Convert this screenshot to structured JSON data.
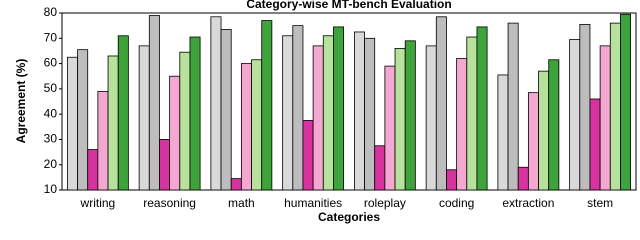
{
  "chart_data": {
    "type": "bar",
    "title": "Category-wise MT-bench Evaluation",
    "x_label": "Categories",
    "y_label": "Agreement (%)",
    "categories": [
      "writing",
      "reasoning",
      "math",
      "humanities",
      "roleplay",
      "coding",
      "extraction",
      "stem"
    ],
    "series": [
      {
        "color": "#d9d9d9",
        "values": [
          62.5,
          67,
          78.5,
          71,
          72.5,
          67,
          55.5,
          69.5
        ]
      },
      {
        "color": "#bdbdbd",
        "values": [
          65.5,
          79,
          73.5,
          75,
          70,
          78.5,
          76,
          75.5
        ]
      },
      {
        "color": "#d6339f",
        "values": [
          26,
          30,
          14.5,
          37.5,
          27.5,
          18,
          19,
          46
        ]
      },
      {
        "color": "#f4a8d1",
        "values": [
          49,
          55,
          60,
          67,
          59,
          62,
          48.5,
          67
        ]
      },
      {
        "color": "#b6e29c",
        "values": [
          63,
          64.5,
          61.5,
          71,
          66,
          70.5,
          57,
          76
        ]
      },
      {
        "color": "#3ea33a",
        "values": [
          71,
          70.5,
          77,
          74.5,
          69,
          74.5,
          61.5,
          79.5
        ]
      }
    ],
    "ylim": [
      10,
      80
    ],
    "yticks": [
      10,
      20,
      30,
      40,
      50,
      60,
      70,
      80
    ]
  }
}
